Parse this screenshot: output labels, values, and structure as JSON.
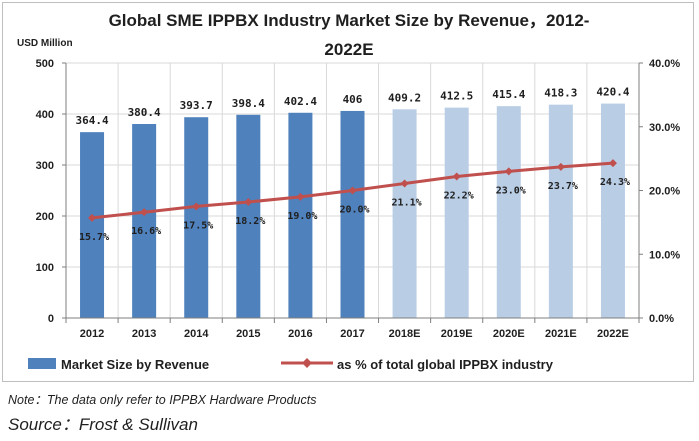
{
  "chart_data": {
    "type": "bar",
    "title_lines": [
      "Global SME IPPBX Industry Market Size by Revenue，2012-",
      "2022E"
    ],
    "ylabel": "USD Million",
    "categories": [
      "2012",
      "2013",
      "2014",
      "2015",
      "2016",
      "2017",
      "2018E",
      "2019E",
      "2020E",
      "2021E",
      "2022E"
    ],
    "ylim": [
      0,
      500
    ],
    "y_ticks": [
      "0",
      "100",
      "200",
      "300",
      "400",
      "500"
    ],
    "y2lim": [
      0,
      40
    ],
    "y2_ticks": [
      "0.0%",
      "10.0%",
      "20.0%",
      "30.0%",
      "40.0%"
    ],
    "bar_labels": [
      "364.4",
      "380.4",
      "393.7",
      "398.4",
      "402.4",
      "406",
      "409.2",
      "412.5",
      "415.4",
      "418.3",
      "420.4"
    ],
    "line_labels": [
      "15.7%",
      "16.6%",
      "17.5%",
      "18.2%",
      "19.0%",
      "20.0%",
      "21.1%",
      "22.2%",
      "23.0%",
      "23.7%",
      "24.3%"
    ],
    "series": [
      {
        "name": "Market Size by Revenue",
        "type": "bar",
        "axis": "left",
        "values": [
          364.4,
          380.4,
          393.7,
          398.4,
          402.4,
          406,
          409.2,
          412.5,
          415.4,
          418.3,
          420.4
        ],
        "color": "#4f81bd",
        "forecast_color": "#b9cde5",
        "forecast_from": "2018E"
      },
      {
        "name": "as % of total global IPPBX industry",
        "type": "line",
        "axis": "right",
        "values": [
          15.7,
          16.6,
          17.5,
          18.2,
          19.0,
          20.0,
          21.1,
          22.2,
          23.0,
          23.7,
          24.3
        ],
        "color": "#c0504d"
      }
    ],
    "grid": true,
    "legend_position": "bottom"
  },
  "note": "Note：The data only refer to IPPBX Hardware Products",
  "source": "Source：Frost & Sullivan"
}
